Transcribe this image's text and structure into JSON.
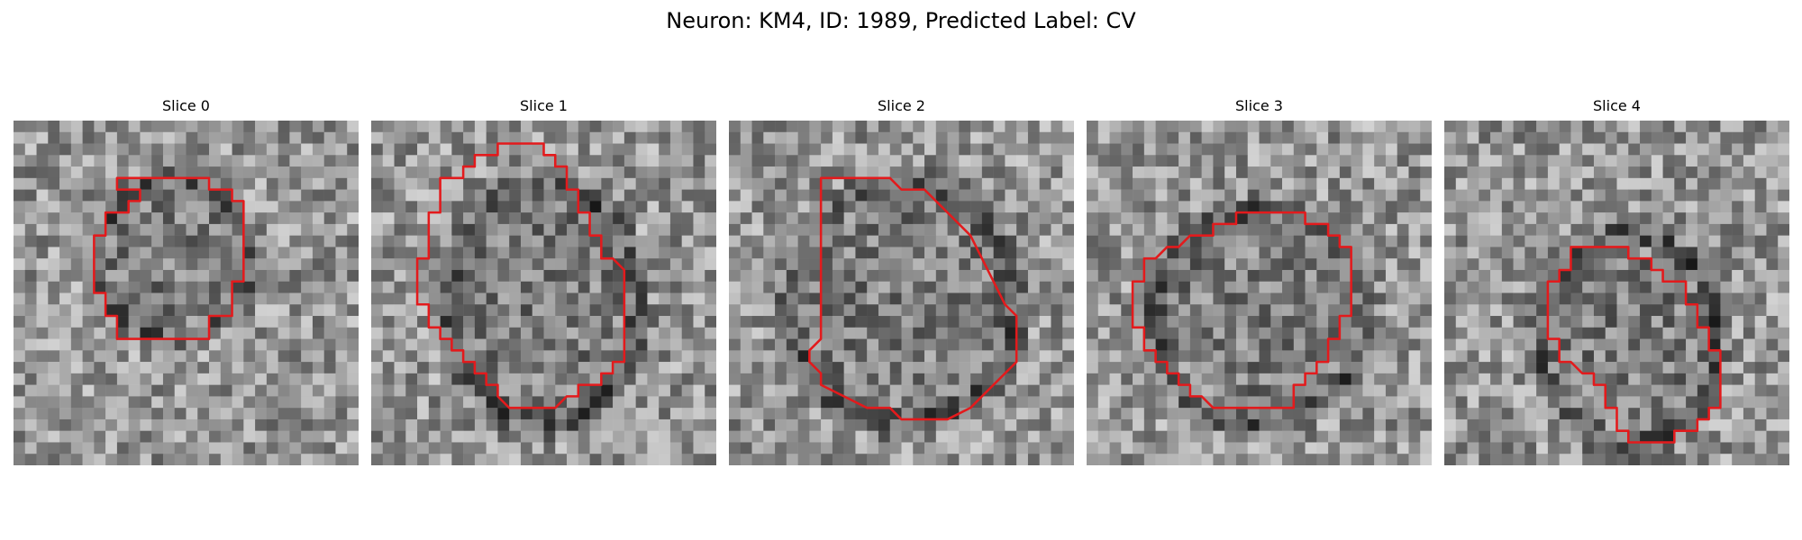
{
  "figure": {
    "title": "Neuron: KM4, ID: 1989, Predicted Label: CV"
  },
  "contour_color": "#e31a1c",
  "colormap": "gray",
  "grid_size": 30,
  "slices": [
    {
      "title": "Slice 0",
      "seed": 11,
      "cell": {
        "cx": 14,
        "cy": 12,
        "rx": 6.5,
        "ry": 6.8
      },
      "contour": [
        [
          9,
          6
        ],
        [
          9,
          5
        ],
        [
          17,
          5
        ],
        [
          17,
          6
        ],
        [
          19,
          6
        ],
        [
          19,
          7
        ],
        [
          20,
          7
        ],
        [
          20,
          8
        ],
        [
          20,
          14
        ],
        [
          19,
          14
        ],
        [
          19,
          17
        ],
        [
          17,
          17
        ],
        [
          17,
          19
        ],
        [
          15,
          19
        ],
        [
          11,
          19
        ],
        [
          9,
          19
        ],
        [
          9,
          17
        ],
        [
          8,
          17
        ],
        [
          8,
          15
        ],
        [
          7,
          15
        ],
        [
          7,
          10
        ],
        [
          8,
          10
        ],
        [
          8,
          8
        ],
        [
          10,
          8
        ],
        [
          10,
          7
        ],
        [
          11,
          7
        ],
        [
          11,
          6
        ]
      ]
    },
    {
      "title": "Slice 1",
      "seed": 23,
      "cell": {
        "cx": 15,
        "cy": 16,
        "rx": 8,
        "ry": 10
      },
      "contour": [
        [
          11,
          3
        ],
        [
          11,
          2
        ],
        [
          15,
          2
        ],
        [
          15,
          3
        ],
        [
          16,
          3
        ],
        [
          16,
          4
        ],
        [
          17,
          4
        ],
        [
          17,
          6
        ],
        [
          18,
          6
        ],
        [
          18,
          8
        ],
        [
          19,
          8
        ],
        [
          19,
          10
        ],
        [
          20,
          10
        ],
        [
          20,
          12
        ],
        [
          21,
          12
        ],
        [
          22,
          13
        ],
        [
          22,
          21
        ],
        [
          21,
          21
        ],
        [
          21,
          22
        ],
        [
          20,
          22
        ],
        [
          20,
          23
        ],
        [
          18,
          23
        ],
        [
          18,
          24
        ],
        [
          17,
          24
        ],
        [
          16,
          25
        ],
        [
          12,
          25
        ],
        [
          11,
          24
        ],
        [
          11,
          23
        ],
        [
          10,
          23
        ],
        [
          10,
          22
        ],
        [
          9,
          22
        ],
        [
          9,
          21
        ],
        [
          8,
          21
        ],
        [
          8,
          20
        ],
        [
          7,
          20
        ],
        [
          7,
          19
        ],
        [
          6,
          19
        ],
        [
          6,
          18
        ],
        [
          5,
          18
        ],
        [
          5,
          16
        ],
        [
          4,
          16
        ],
        [
          4,
          12
        ],
        [
          5,
          12
        ],
        [
          5,
          8
        ],
        [
          6,
          8
        ],
        [
          6,
          5
        ],
        [
          8,
          5
        ],
        [
          8,
          4
        ],
        [
          9,
          4
        ],
        [
          9,
          3
        ]
      ]
    },
    {
      "title": "Slice 2",
      "seed": 37,
      "cell": {
        "cx": 15,
        "cy": 16,
        "rx": 9.5,
        "ry": 10
      },
      "contour": [
        [
          8,
          6
        ],
        [
          8,
          5
        ],
        [
          14,
          5
        ],
        [
          15,
          6
        ],
        [
          17,
          6
        ],
        [
          18,
          7
        ],
        [
          19,
          8
        ],
        [
          20,
          9
        ],
        [
          21,
          10
        ],
        [
          22,
          12
        ],
        [
          23,
          14
        ],
        [
          24,
          16
        ],
        [
          25,
          17
        ],
        [
          25,
          21
        ],
        [
          24,
          22
        ],
        [
          23,
          23
        ],
        [
          22,
          24
        ],
        [
          21,
          25
        ],
        [
          19,
          26
        ],
        [
          15,
          26
        ],
        [
          14,
          25
        ],
        [
          12,
          25
        ],
        [
          10,
          24
        ],
        [
          8,
          23
        ],
        [
          8,
          22
        ],
        [
          7,
          21
        ],
        [
          7,
          20
        ],
        [
          8,
          19
        ],
        [
          8,
          7
        ]
      ]
    },
    {
      "title": "Slice 3",
      "seed": 51,
      "cell": {
        "cx": 15,
        "cy": 17,
        "rx": 9,
        "ry": 9
      },
      "contour": [
        [
          13,
          9
        ],
        [
          13,
          8
        ],
        [
          19,
          8
        ],
        [
          19,
          9
        ],
        [
          21,
          9
        ],
        [
          21,
          10
        ],
        [
          22,
          10
        ],
        [
          22,
          11
        ],
        [
          23,
          11
        ],
        [
          23,
          17
        ],
        [
          22,
          17
        ],
        [
          22,
          19
        ],
        [
          21,
          19
        ],
        [
          21,
          21
        ],
        [
          20,
          21
        ],
        [
          20,
          22
        ],
        [
          19,
          22
        ],
        [
          19,
          23
        ],
        [
          18,
          23
        ],
        [
          18,
          25
        ],
        [
          15,
          25
        ],
        [
          11,
          25
        ],
        [
          10,
          24
        ],
        [
          9,
          24
        ],
        [
          9,
          23
        ],
        [
          8,
          23
        ],
        [
          8,
          22
        ],
        [
          7,
          22
        ],
        [
          7,
          21
        ],
        [
          6,
          21
        ],
        [
          6,
          20
        ],
        [
          5,
          20
        ],
        [
          5,
          18
        ],
        [
          4,
          18
        ],
        [
          4,
          14
        ],
        [
          5,
          14
        ],
        [
          5,
          12
        ],
        [
          6,
          12
        ],
        [
          7,
          11
        ],
        [
          8,
          11
        ],
        [
          9,
          10
        ],
        [
          10,
          10
        ],
        [
          11,
          10
        ],
        [
          11,
          9
        ]
      ]
    },
    {
      "title": "Slice 4",
      "seed": 67,
      "cell": {
        "cx": 16,
        "cy": 19,
        "rx": 7.5,
        "ry": 9
      },
      "contour": [
        [
          11,
          12
        ],
        [
          11,
          11
        ],
        [
          16,
          11
        ],
        [
          16,
          12
        ],
        [
          18,
          12
        ],
        [
          18,
          13
        ],
        [
          19,
          13
        ],
        [
          19,
          14
        ],
        [
          21,
          14
        ],
        [
          21,
          16
        ],
        [
          22,
          16
        ],
        [
          22,
          18
        ],
        [
          23,
          18
        ],
        [
          23,
          20
        ],
        [
          24,
          20
        ],
        [
          24,
          25
        ],
        [
          23,
          25
        ],
        [
          23,
          26
        ],
        [
          22,
          26
        ],
        [
          22,
          27
        ],
        [
          20,
          27
        ],
        [
          20,
          28
        ],
        [
          16,
          28
        ],
        [
          16,
          27
        ],
        [
          15,
          27
        ],
        [
          15,
          25
        ],
        [
          14,
          25
        ],
        [
          14,
          23
        ],
        [
          13,
          23
        ],
        [
          13,
          22
        ],
        [
          12,
          22
        ],
        [
          11,
          21
        ],
        [
          10,
          21
        ],
        [
          10,
          19
        ],
        [
          9,
          19
        ],
        [
          9,
          14
        ],
        [
          10,
          14
        ],
        [
          10,
          13
        ],
        [
          11,
          13
        ]
      ]
    }
  ]
}
